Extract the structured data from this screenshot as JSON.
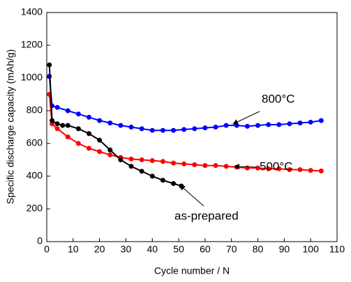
{
  "chart_data": {
    "type": "line",
    "xlabel": "Cycle number / N",
    "ylabel": "Specific discharge capacity (mAh/g)",
    "xlim": [
      0,
      110
    ],
    "xticks": [
      0,
      10,
      20,
      30,
      40,
      50,
      60,
      70,
      80,
      90,
      100,
      110
    ],
    "ylim": [
      0,
      1400
    ],
    "yticks": [
      0,
      200,
      400,
      600,
      800,
      1000,
      1200,
      1400
    ],
    "series": [
      {
        "name": "800°C",
        "color": "#0000ff",
        "x": [
          1,
          2,
          4,
          8,
          12,
          16,
          20,
          24,
          28,
          32,
          36,
          40,
          44,
          48,
          52,
          56,
          60,
          64,
          68,
          72,
          76,
          80,
          84,
          88,
          92,
          96,
          100,
          104
        ],
        "values": [
          1010,
          830,
          820,
          800,
          780,
          760,
          740,
          725,
          710,
          700,
          690,
          680,
          680,
          680,
          685,
          690,
          695,
          700,
          710,
          710,
          705,
          710,
          715,
          715,
          720,
          725,
          730,
          740
        ]
      },
      {
        "name": "500°C",
        "color": "#ff0000",
        "x": [
          1,
          2,
          4,
          8,
          12,
          16,
          20,
          24,
          28,
          32,
          36,
          40,
          44,
          48,
          52,
          56,
          60,
          64,
          68,
          72,
          76,
          80,
          84,
          88,
          92,
          96,
          100,
          104
        ],
        "values": [
          900,
          720,
          690,
          640,
          600,
          570,
          550,
          530,
          515,
          505,
          500,
          495,
          490,
          480,
          475,
          470,
          465,
          465,
          460,
          455,
          450,
          450,
          445,
          445,
          440,
          440,
          435,
          432
        ]
      },
      {
        "name": "as-prepared",
        "color": "#000000",
        "x": [
          1,
          2,
          4,
          6,
          8,
          12,
          16,
          20,
          24,
          28,
          32,
          36,
          40,
          44,
          48,
          51
        ],
        "values": [
          1080,
          740,
          720,
          710,
          710,
          690,
          660,
          620,
          560,
          500,
          460,
          430,
          400,
          375,
          355,
          340
        ]
      }
    ]
  }
}
